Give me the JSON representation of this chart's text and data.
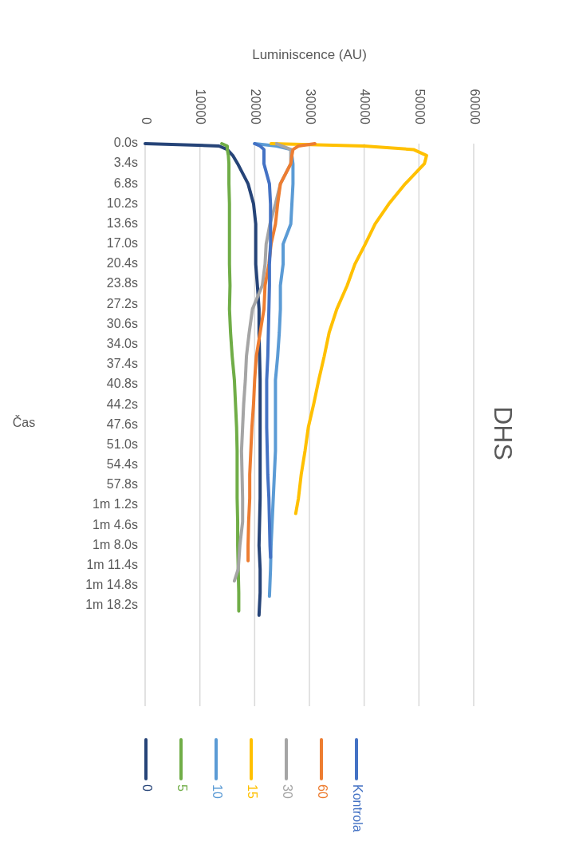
{
  "chart_data": {
    "type": "line",
    "title": "DHS",
    "ylabel": "Čas",
    "xlabel": "Luminiscence (AU)",
    "orientation": "horizontal",
    "ylim": [
      95.2,
      0
    ],
    "yticks": [
      {
        "value": 0,
        "label": "0.0s"
      },
      {
        "value": 3.4,
        "label": "3.4s"
      },
      {
        "value": 6.8,
        "label": "6.8s"
      },
      {
        "value": 10.2,
        "label": "10.2s"
      },
      {
        "value": 13.6,
        "label": "13.6s"
      },
      {
        "value": 17,
        "label": "17.0s"
      },
      {
        "value": 20.4,
        "label": "20.4s"
      },
      {
        "value": 23.8,
        "label": "23.8s"
      },
      {
        "value": 27.2,
        "label": "27.2s"
      },
      {
        "value": 30.6,
        "label": "30.6s"
      },
      {
        "value": 34,
        "label": "34.0s"
      },
      {
        "value": 37.4,
        "label": "37.4s"
      },
      {
        "value": 40.8,
        "label": "40.8s"
      },
      {
        "value": 44.2,
        "label": "44.2s"
      },
      {
        "value": 47.6,
        "label": "47.6s"
      },
      {
        "value": 51,
        "label": "51.0s"
      },
      {
        "value": 54.4,
        "label": "54.4s"
      },
      {
        "value": 57.8,
        "label": "57.8s"
      },
      {
        "value": 61.2,
        "label": "1m 1.2s"
      },
      {
        "value": 64.6,
        "label": "1m 4.6s"
      },
      {
        "value": 68,
        "label": "1m 8.0s"
      },
      {
        "value": 71.4,
        "label": "1m 11.4s"
      },
      {
        "value": 74.8,
        "label": "1m 14.8s"
      },
      {
        "value": 78.2,
        "label": "1m 18.2s"
      }
    ],
    "xlim": [
      0,
      60000
    ],
    "xticks": [
      0,
      10000,
      20000,
      30000,
      40000,
      50000,
      60000
    ],
    "grid": "x",
    "legend": "bottom",
    "line_style": "solid",
    "series": [
      {
        "name": "0",
        "color": "#264478",
        "x": [
          0,
          0.4,
          1,
          2,
          3.4,
          6.8,
          10.2,
          13.6,
          17,
          20.4,
          24,
          28,
          32,
          36,
          40,
          44,
          48,
          52,
          56,
          60,
          64,
          68,
          72,
          76,
          79.8
        ],
        "values": [
          0,
          13500,
          15000,
          16000,
          16900,
          18800,
          19800,
          20200,
          20200,
          20200,
          20500,
          20800,
          20800,
          20900,
          21000,
          21000,
          21000,
          21000,
          21000,
          21000,
          20900,
          20800,
          21000,
          21000,
          20800
        ]
      },
      {
        "name": "5",
        "color": "#70ad47",
        "x": [
          0,
          0.4,
          1,
          2,
          3.4,
          6.8,
          10.2,
          13.6,
          17,
          20.4,
          24,
          28,
          32,
          36,
          40,
          44,
          48,
          52,
          56,
          60,
          64,
          68,
          72,
          76,
          79.1
        ],
        "values": [
          14000,
          15000,
          15000,
          15200,
          15300,
          15300,
          15400,
          15400,
          15400,
          15400,
          15500,
          15400,
          15600,
          15900,
          16300,
          16500,
          16700,
          16800,
          16800,
          16800,
          16900,
          16900,
          17000,
          17100,
          17100
        ]
      },
      {
        "name": "10",
        "color": "#5b9bd5",
        "x": [
          0,
          0.4,
          1,
          2,
          3.4,
          6.8,
          10.2,
          13.6,
          17,
          20.4,
          24,
          28,
          32,
          36,
          40,
          44,
          48,
          52,
          56,
          60,
          64,
          68,
          72,
          76.6
        ],
        "values": [
          20000,
          24000,
          26600,
          26800,
          27000,
          27000,
          26800,
          26600,
          25200,
          25200,
          24700,
          24700,
          24500,
          24200,
          23800,
          23800,
          23800,
          23800,
          23600,
          23400,
          23200,
          23000,
          22900,
          22700
        ]
      },
      {
        "name": "15",
        "color": "#ffc000",
        "x": [
          0,
          0.4,
          1,
          2,
          3.4,
          6.8,
          10.2,
          13.6,
          17,
          20.4,
          24,
          28,
          32,
          36,
          40,
          44,
          48,
          52,
          56,
          60,
          62.6
        ],
        "values": [
          23000,
          40000,
          49000,
          51400,
          51000,
          47500,
          44500,
          42000,
          40200,
          38300,
          36900,
          35000,
          33600,
          32700,
          31700,
          30800,
          29800,
          29200,
          28500,
          28000,
          27500
        ]
      },
      {
        "name": "30",
        "color": "#a5a5a5",
        "x": [
          0,
          0.4,
          1,
          2,
          3.4,
          6.8,
          10.2,
          13.6,
          17,
          20.4,
          24,
          28,
          32,
          36,
          40,
          44,
          48,
          52,
          56,
          60,
          64,
          68,
          72,
          74
        ],
        "values": [
          24000,
          25000,
          26600,
          26600,
          26600,
          24700,
          23800,
          22800,
          22100,
          21900,
          21400,
          19600,
          19000,
          18500,
          18300,
          18000,
          17800,
          17600,
          17700,
          17800,
          17800,
          17300,
          17000,
          16300
        ]
      },
      {
        "name": "60",
        "color": "#ed7d31",
        "x": [
          0,
          0.4,
          1,
          2,
          3.4,
          6.8,
          10.2,
          13.6,
          17,
          20.4,
          24,
          28,
          32,
          36,
          40,
          44,
          48,
          52,
          56,
          60,
          64,
          68,
          70.6
        ],
        "values": [
          31000,
          28000,
          27000,
          26800,
          26600,
          24700,
          24200,
          23800,
          23000,
          22600,
          21900,
          21700,
          21000,
          20300,
          20000,
          19800,
          19500,
          19300,
          19100,
          19100,
          18900,
          18800,
          18800
        ]
      },
      {
        "name": "Kontrola",
        "color": "#4472c4",
        "x": [
          0,
          0.4,
          1,
          2,
          3.4,
          6.8,
          10.2,
          13.6,
          17,
          20.4,
          24,
          28,
          32,
          36,
          40,
          44,
          48,
          52,
          56,
          60,
          64,
          68,
          70
        ],
        "values": [
          20000,
          21000,
          21700,
          21700,
          21700,
          22700,
          22900,
          22900,
          22900,
          22700,
          22700,
          22600,
          22500,
          22400,
          22200,
          22200,
          22200,
          22300,
          22400,
          22600,
          22700,
          22800,
          22900
        ]
      }
    ]
  }
}
